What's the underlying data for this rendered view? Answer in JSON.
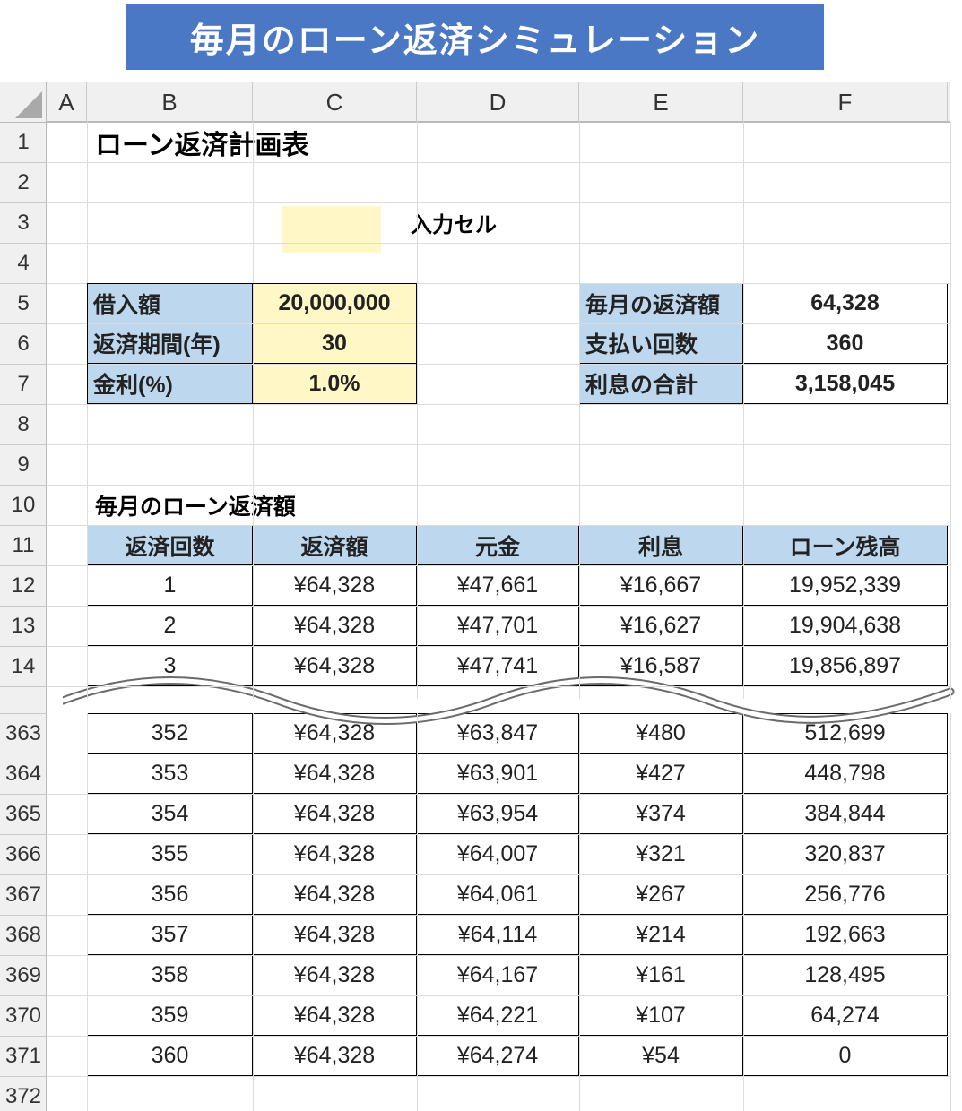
{
  "banner": {
    "title": "毎月のローン返済シミュレーション"
  },
  "columns": [
    "A",
    "B",
    "C",
    "D",
    "E",
    "F"
  ],
  "sheet_title": "ローン返済計画表",
  "legend": {
    "label": "入力セル",
    "color": "#fff7c6"
  },
  "inputs": {
    "loan_label": "借入額",
    "loan_value": "20,000,000",
    "period_label": "返済期間(年)",
    "period_value": "30",
    "rate_label": "金利(%)",
    "rate_value": "1.0%"
  },
  "results": {
    "monthly_label": "毎月の返済額",
    "monthly_value": "64,328",
    "count_label": "支払い回数",
    "count_value": "360",
    "interest_label": "利息の合計",
    "interest_value": "3,158,045"
  },
  "schedule": {
    "title": "毎月のローン返済額",
    "headers": [
      "返済回数",
      "返済額",
      "元金",
      "利息",
      "ローン残高"
    ],
    "top_rows": [
      {
        "row": "12",
        "cells": [
          "1",
          "¥64,328",
          "¥47,661",
          "¥16,667",
          "19,952,339"
        ]
      },
      {
        "row": "13",
        "cells": [
          "2",
          "¥64,328",
          "¥47,701",
          "¥16,627",
          "19,904,638"
        ]
      },
      {
        "row": "14",
        "cells": [
          "3",
          "¥64,328",
          "¥47,741",
          "¥16,587",
          "19,856,897"
        ]
      }
    ],
    "bottom_rows": [
      {
        "row": "363",
        "cells": [
          "352",
          "¥64,328",
          "¥63,847",
          "¥480",
          "512,699"
        ]
      },
      {
        "row": "364",
        "cells": [
          "353",
          "¥64,328",
          "¥63,901",
          "¥427",
          "448,798"
        ]
      },
      {
        "row": "365",
        "cells": [
          "354",
          "¥64,328",
          "¥63,954",
          "¥374",
          "384,844"
        ]
      },
      {
        "row": "366",
        "cells": [
          "355",
          "¥64,328",
          "¥64,007",
          "¥321",
          "320,837"
        ]
      },
      {
        "row": "367",
        "cells": [
          "356",
          "¥64,328",
          "¥64,061",
          "¥267",
          "256,776"
        ]
      },
      {
        "row": "368",
        "cells": [
          "357",
          "¥64,328",
          "¥64,114",
          "¥214",
          "192,663"
        ]
      },
      {
        "row": "369",
        "cells": [
          "358",
          "¥64,328",
          "¥64,167",
          "¥161",
          "128,495"
        ]
      },
      {
        "row": "370",
        "cells": [
          "359",
          "¥64,328",
          "¥64,221",
          "¥107",
          "64,274"
        ]
      },
      {
        "row": "371",
        "cells": [
          "360",
          "¥64,328",
          "¥64,274",
          "¥54",
          "0"
        ]
      }
    ]
  },
  "row_numbers_top": [
    "1",
    "2",
    "3",
    "4",
    "5",
    "6",
    "7",
    "8",
    "9",
    "10",
    "11",
    "12",
    "13",
    "14"
  ],
  "row_numbers_bottom": [
    "363",
    "364",
    "365",
    "366",
    "367",
    "368",
    "369",
    "370",
    "371",
    "372"
  ],
  "colors": {
    "header_blue": "#bdd7ee",
    "input_yellow": "#fff7c6",
    "banner_blue": "#4a78c4"
  }
}
